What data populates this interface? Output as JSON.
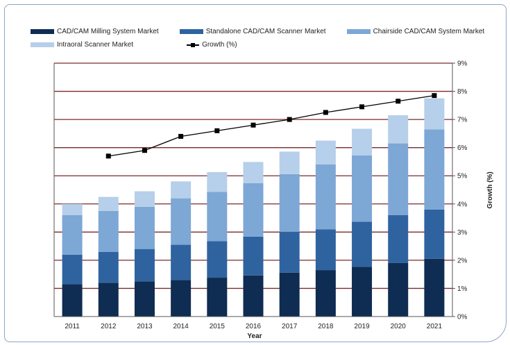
{
  "chart_data": {
    "type": "bar",
    "stacked": true,
    "xlabel": "Year",
    "ylabel_right": "Growth (%)",
    "categories": [
      "2011",
      "2012",
      "2013",
      "2014",
      "2015",
      "2016",
      "2017",
      "2018",
      "2019",
      "2020",
      "2021"
    ],
    "series": [
      {
        "name": "CAD/CAM Milling System Market",
        "color": "#0f2c52",
        "values": [
          1.15,
          1.2,
          1.25,
          1.3,
          1.38,
          1.46,
          1.56,
          1.65,
          1.77,
          1.9,
          2.05
        ]
      },
      {
        "name": "Standalone CAD/CAM Scanner Market",
        "color": "#2f63a0",
        "values": [
          1.05,
          1.1,
          1.15,
          1.25,
          1.3,
          1.38,
          1.45,
          1.45,
          1.6,
          1.7,
          1.75
        ]
      },
      {
        "name": "Chairside CAD/CAM System Market",
        "color": "#7da7d5",
        "values": [
          1.4,
          1.45,
          1.5,
          1.65,
          1.75,
          1.9,
          2.05,
          2.3,
          2.35,
          2.55,
          2.85
        ]
      },
      {
        "name": "Intraoral Scanner Market",
        "color": "#b6cfea",
        "values": [
          0.4,
          0.5,
          0.55,
          0.6,
          0.7,
          0.75,
          0.8,
          0.85,
          0.95,
          1.0,
          1.1
        ]
      }
    ],
    "growth": {
      "name": "Growth (%)",
      "color": "#000000",
      "values": [
        null,
        5.7,
        5.9,
        6.4,
        6.6,
        6.8,
        7.0,
        7.25,
        7.45,
        7.65,
        7.85
      ]
    },
    "y_right_ticks": [
      "0%",
      "1%",
      "2%",
      "3%",
      "4%",
      "5%",
      "6%",
      "7%",
      "8%",
      "9%"
    ],
    "y_right_range": [
      0,
      9
    ],
    "grid": true,
    "legend_position": "top"
  }
}
